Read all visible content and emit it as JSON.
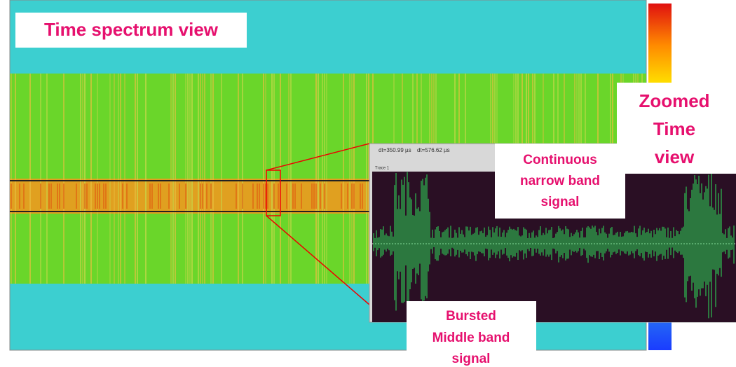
{
  "spectrum_label": "Time spectrum view",
  "zoom_label": [
    "Zoomed",
    "Time",
    "view"
  ],
  "zoom_window": {
    "cursors": [
      "dt=350.99 µs",
      "dt=576.62 µs"
    ],
    "trace": "Trace 1"
  },
  "continuous_label": [
    "Continuous",
    "narrow band",
    "signal"
  ],
  "bursted_label": [
    "Bursted",
    "Middle band",
    "signal"
  ]
}
